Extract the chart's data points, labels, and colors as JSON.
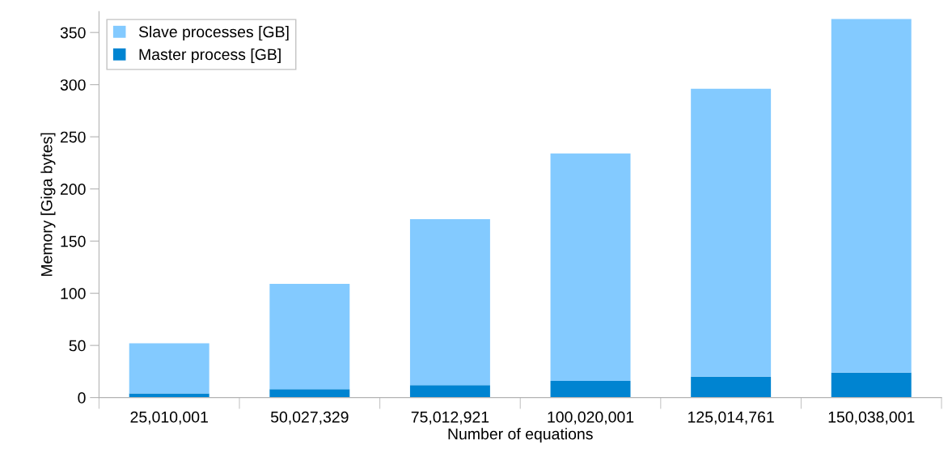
{
  "chart_data": {
    "type": "bar",
    "stacked": true,
    "xlabel": "Number of equations",
    "ylabel": "Memory [Giga bytes]",
    "categories": [
      "25,010,001",
      "50,027,329",
      "75,012,921",
      "100,020,001",
      "125,014,761",
      "150,038,001"
    ],
    "series": [
      {
        "name": "Master process [GB]",
        "color": "#0084d1",
        "values": [
          4,
          8,
          12,
          16,
          20,
          24
        ]
      },
      {
        "name": "Slave processes [GB]",
        "color": "#83caff",
        "values": [
          48,
          101,
          159,
          218,
          276,
          339
        ]
      }
    ],
    "ylim": [
      0,
      370
    ],
    "yticks": [
      0,
      50,
      100,
      150,
      200,
      250,
      300,
      350
    ],
    "grid": false,
    "legend": "top left"
  }
}
